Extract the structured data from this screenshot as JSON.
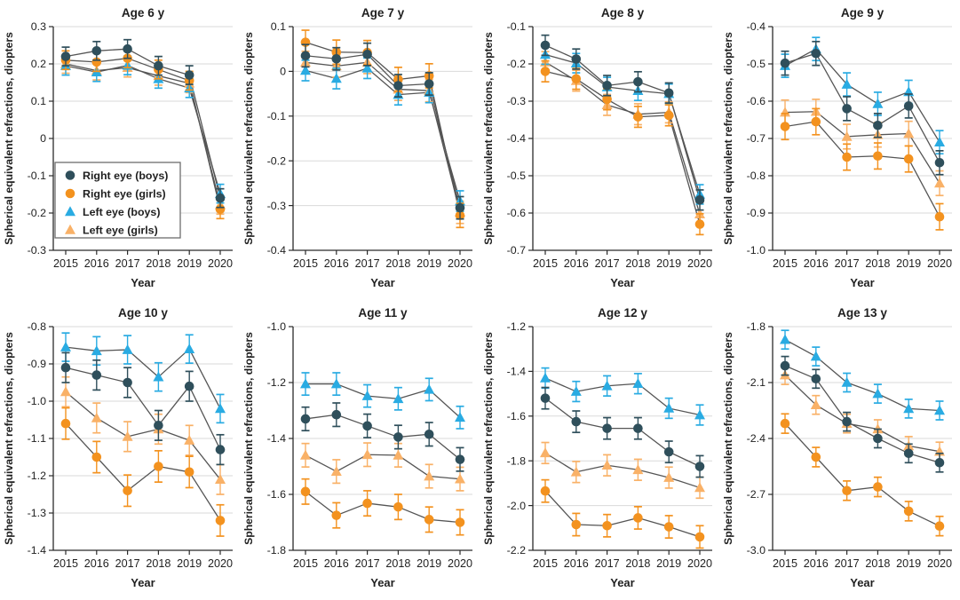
{
  "figure_title": "",
  "chart_data": {
    "type": "line",
    "x": [
      2015,
      2016,
      2017,
      2018,
      2019,
      2020
    ],
    "xlabel": "Year",
    "ylabel": "Spherical equivalent refractions, diopters",
    "grid": true,
    "legend_position": "inside-first-panel-lower-left",
    "line_color": "#555555",
    "gridline_color": "#dadada",
    "axis_color": "#2b2b2b",
    "text_color": "#1f1f1f",
    "series_meta": [
      {
        "id": "right_boys",
        "label": "Right eye (boys)",
        "color": "#2F4F5B",
        "marker": "circle"
      },
      {
        "id": "right_girls",
        "label": "Right eye (girls)",
        "color": "#F3921F",
        "marker": "circle"
      },
      {
        "id": "left_boys",
        "label": "Left eye (boys)",
        "color": "#29ABE2",
        "marker": "triangle"
      },
      {
        "id": "left_girls",
        "label": "Left eye (girls)",
        "color": "#F9B167",
        "marker": "triangle"
      }
    ],
    "draw_order": [
      "left_girls",
      "left_boys",
      "right_girls",
      "right_boys"
    ],
    "panels": [
      {
        "title": "Age 6 y",
        "ylim": [
          -0.3,
          0.3
        ],
        "ytick_step": 0.1,
        "show_legend": true,
        "series": {
          "right_boys": {
            "values": [
              0.22,
              0.235,
              0.24,
              0.195,
              0.17,
              -0.16
            ],
            "err": 0.025
          },
          "right_girls": {
            "values": [
              0.21,
              0.205,
              0.215,
              0.185,
              0.155,
              -0.19
            ],
            "err": 0.025
          },
          "left_boys": {
            "values": [
              0.195,
              0.178,
              0.196,
              0.16,
              0.135,
              -0.148
            ],
            "err": 0.025
          },
          "left_girls": {
            "values": [
              0.2,
              0.182,
              0.19,
              0.168,
              0.148,
              -0.178
            ],
            "err": 0.025
          }
        }
      },
      {
        "title": "Age 7 y",
        "ylim": [
          -0.4,
          0.1
        ],
        "ytick_step": 0.1,
        "show_legend": false,
        "series": {
          "right_boys": {
            "values": [
              0.035,
              0.028,
              0.038,
              -0.032,
              -0.028,
              -0.305
            ],
            "err": 0.025
          },
          "right_girls": {
            "values": [
              0.065,
              0.043,
              0.042,
              -0.018,
              -0.01,
              -0.322
            ],
            "err": 0.027
          },
          "left_boys": {
            "values": [
              0.002,
              -0.016,
              0.007,
              -0.052,
              -0.047,
              -0.29
            ],
            "err": 0.023
          },
          "left_girls": {
            "values": [
              0.02,
              0.012,
              0.02,
              -0.04,
              -0.043,
              -0.315
            ],
            "err": 0.025
          }
        }
      },
      {
        "title": "Age 8 y",
        "ylim": [
          -0.7,
          -0.1
        ],
        "ytick_step": 0.1,
        "show_legend": false,
        "series": {
          "right_boys": {
            "values": [
              -0.15,
              -0.187,
              -0.258,
              -0.248,
              -0.278,
              -0.565
            ],
            "err": 0.027
          },
          "right_girls": {
            "values": [
              -0.22,
              -0.24,
              -0.295,
              -0.342,
              -0.338,
              -0.63
            ],
            "err": 0.028
          },
          "left_boys": {
            "values": [
              -0.175,
              -0.198,
              -0.262,
              -0.272,
              -0.28,
              -0.55
            ],
            "err": 0.026
          },
          "left_girls": {
            "values": [
              -0.195,
              -0.245,
              -0.31,
              -0.335,
              -0.33,
              -0.603
            ],
            "err": 0.028
          }
        }
      },
      {
        "title": "Age 9 y",
        "ylim": [
          -1.0,
          -0.4
        ],
        "ytick_step": 0.1,
        "show_legend": false,
        "series": {
          "right_boys": {
            "values": [
              -0.498,
              -0.472,
              -0.62,
              -0.665,
              -0.613,
              -0.765
            ],
            "err": 0.032
          },
          "right_girls": {
            "values": [
              -0.668,
              -0.655,
              -0.75,
              -0.747,
              -0.755,
              -0.91
            ],
            "err": 0.035
          },
          "left_boys": {
            "values": [
              -0.505,
              -0.46,
              -0.555,
              -0.607,
              -0.575,
              -0.71
            ],
            "err": 0.031
          },
          "left_girls": {
            "values": [
              -0.63,
              -0.628,
              -0.695,
              -0.69,
              -0.687,
              -0.82
            ],
            "err": 0.033
          }
        }
      },
      {
        "title": "Age 10 y",
        "ylim": [
          -1.4,
          -0.8
        ],
        "ytick_step": 0.1,
        "show_legend": false,
        "series": {
          "right_boys": {
            "values": [
              -0.91,
              -0.93,
              -0.95,
              -1.065,
              -0.96,
              -1.13
            ],
            "err": 0.04
          },
          "right_girls": {
            "values": [
              -1.06,
              -1.15,
              -1.24,
              -1.175,
              -1.19,
              -1.32
            ],
            "err": 0.042
          },
          "left_boys": {
            "values": [
              -0.855,
              -0.865,
              -0.862,
              -0.935,
              -0.86,
              -1.02
            ],
            "err": 0.038
          },
          "left_girls": {
            "values": [
              -0.975,
              -1.045,
              -1.095,
              -1.075,
              -1.105,
              -1.21
            ],
            "err": 0.04
          }
        }
      },
      {
        "title": "Age 11 y",
        "ylim": [
          -1.8,
          -1.0
        ],
        "ytick_step": 0.2,
        "show_legend": false,
        "series": {
          "right_boys": {
            "values": [
              -1.33,
              -1.315,
              -1.355,
              -1.395,
              -1.385,
              -1.475
            ],
            "err": 0.042
          },
          "right_girls": {
            "values": [
              -1.59,
              -1.675,
              -1.632,
              -1.645,
              -1.69,
              -1.7
            ],
            "err": 0.045
          },
          "left_boys": {
            "values": [
              -1.205,
              -1.205,
              -1.248,
              -1.258,
              -1.225,
              -1.325
            ],
            "err": 0.04
          },
          "left_girls": {
            "values": [
              -1.46,
              -1.518,
              -1.458,
              -1.46,
              -1.535,
              -1.545
            ],
            "err": 0.042
          }
        }
      },
      {
        "title": "Age 12 y",
        "ylim": [
          -2.2,
          -1.2
        ],
        "ytick_step": 0.2,
        "show_legend": false,
        "series": {
          "right_boys": {
            "values": [
              -1.52,
              -1.625,
              -1.655,
              -1.655,
              -1.76,
              -1.825
            ],
            "err": 0.048
          },
          "right_girls": {
            "values": [
              -1.935,
              -2.085,
              -2.09,
              -2.055,
              -2.095,
              -2.14
            ],
            "err": 0.05
          },
          "left_boys": {
            "values": [
              -1.43,
              -1.49,
              -1.465,
              -1.455,
              -1.565,
              -1.595
            ],
            "err": 0.045
          },
          "left_girls": {
            "values": [
              -1.765,
              -1.85,
              -1.82,
              -1.84,
              -1.875,
              -1.92
            ],
            "err": 0.047
          }
        }
      },
      {
        "title": "Age 13 y",
        "ylim": [
          -3.0,
          -1.8
        ],
        "ytick_step": 0.3,
        "show_legend": false,
        "series": {
          "right_boys": {
            "values": [
              -2.01,
              -2.08,
              -2.31,
              -2.4,
              -2.48,
              -2.53
            ],
            "err": 0.05
          },
          "right_girls": {
            "values": [
              -2.32,
              -2.5,
              -2.68,
              -2.66,
              -2.79,
              -2.87
            ],
            "err": 0.052
          },
          "left_boys": {
            "values": [
              -1.87,
              -1.96,
              -2.1,
              -2.16,
              -2.24,
              -2.25
            ],
            "err": 0.05
          },
          "left_girls": {
            "values": [
              -2.06,
              -2.22,
              -2.32,
              -2.35,
              -2.44,
              -2.47
            ],
            "err": 0.05
          }
        }
      }
    ]
  }
}
